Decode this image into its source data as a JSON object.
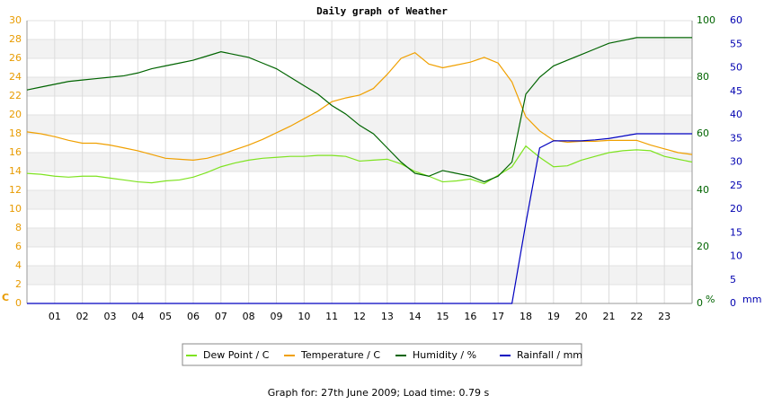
{
  "chart_data": {
    "type": "line",
    "title": "Daily graph of Weather",
    "x": [
      0,
      0.5,
      1,
      1.5,
      2,
      2.5,
      3,
      3.5,
      4,
      4.5,
      5,
      5.5,
      6,
      6.5,
      7,
      7.5,
      8,
      8.5,
      9,
      9.5,
      10,
      10.5,
      11,
      11.5,
      12,
      12.5,
      13,
      13.5,
      14,
      14.5,
      15,
      15.5,
      16,
      16.5,
      17,
      17.5,
      18,
      18.5,
      19,
      19.5,
      20,
      20.5,
      21,
      21.5,
      22,
      22.5,
      23,
      23.5,
      24
    ],
    "xlim": [
      0,
      24
    ],
    "xticks": [
      {
        "value": 1,
        "label": "01"
      },
      {
        "value": 2,
        "label": "02"
      },
      {
        "value": 3,
        "label": "03"
      },
      {
        "value": 4,
        "label": "04"
      },
      {
        "value": 5,
        "label": "05"
      },
      {
        "value": 6,
        "label": "06"
      },
      {
        "value": 7,
        "label": "07"
      },
      {
        "value": 8,
        "label": "08"
      },
      {
        "value": 9,
        "label": "09"
      },
      {
        "value": 10,
        "label": "10"
      },
      {
        "value": 11,
        "label": "11"
      },
      {
        "value": 12,
        "label": "12"
      },
      {
        "value": 13,
        "label": "13"
      },
      {
        "value": 14,
        "label": "14"
      },
      {
        "value": 15,
        "label": "15"
      },
      {
        "value": 16,
        "label": "16"
      },
      {
        "value": 17,
        "label": "17"
      },
      {
        "value": 18,
        "label": "18"
      },
      {
        "value": 19,
        "label": "19"
      },
      {
        "value": 20,
        "label": "20"
      },
      {
        "value": 21,
        "label": "21"
      },
      {
        "value": 22,
        "label": "22"
      },
      {
        "value": 23,
        "label": "23"
      }
    ],
    "ylabel": "C",
    "ylim": [
      0,
      30
    ],
    "yticks": [
      0,
      2,
      4,
      6,
      8,
      10,
      12,
      14,
      16,
      18,
      20,
      22,
      24,
      26,
      28,
      30
    ],
    "ycolor": "#e89b00",
    "y2label": "%",
    "y2lim": [
      0,
      100
    ],
    "y2ticks": [
      0,
      20,
      40,
      60,
      80,
      100
    ],
    "y2color": "#006400",
    "y3label": "mm",
    "y3lim": [
      0,
      60
    ],
    "y3ticks": [
      0,
      5,
      10,
      15,
      20,
      25,
      30,
      35,
      40,
      45,
      50,
      55,
      60
    ],
    "y3color": "#0000b0",
    "grid": true,
    "series": [
      {
        "name": "Dew Point / C",
        "color": "#7ee320",
        "axis": "y",
        "values": [
          13.8,
          13.7,
          13.5,
          13.4,
          13.5,
          13.5,
          13.3,
          13.1,
          12.9,
          12.8,
          13.0,
          13.1,
          13.4,
          13.9,
          14.5,
          14.9,
          15.2,
          15.4,
          15.5,
          15.6,
          15.6,
          15.7,
          15.7,
          15.6,
          15.1,
          15.2,
          15.3,
          14.8,
          14.0,
          13.5,
          12.9,
          13.0,
          13.2,
          12.7,
          13.6,
          14.5,
          16.7,
          15.5,
          14.5,
          14.6,
          15.2,
          15.6,
          16.0,
          16.2,
          16.3,
          16.2,
          15.6,
          15.3,
          15.0
        ]
      },
      {
        "name": "Temperature / C",
        "color": "#f0a000",
        "axis": "y",
        "values": [
          18.2,
          18.0,
          17.7,
          17.3,
          17.0,
          17.0,
          16.8,
          16.5,
          16.2,
          15.8,
          15.4,
          15.3,
          15.2,
          15.4,
          15.8,
          16.3,
          16.8,
          17.4,
          18.1,
          18.8,
          19.6,
          20.4,
          21.4,
          21.8,
          22.1,
          22.8,
          24.3,
          26.0,
          26.6,
          25.4,
          25.0,
          25.3,
          25.6,
          26.1,
          25.5,
          23.5,
          19.8,
          18.3,
          17.3,
          17.1,
          17.2,
          17.2,
          17.3,
          17.3,
          17.3,
          16.8,
          16.4,
          16.0,
          15.8
        ]
      },
      {
        "name": "Humidity / %",
        "color": "#006400",
        "axis": "y2",
        "values": [
          75.5,
          76.5,
          77.5,
          78.5,
          79,
          79.5,
          80,
          80.5,
          81.5,
          83,
          84,
          85,
          86,
          87.5,
          89,
          88,
          87,
          85,
          83,
          80,
          77,
          74,
          70,
          67,
          63,
          60,
          55,
          50,
          46,
          45,
          47,
          46,
          45,
          43,
          45,
          50,
          74,
          80,
          84,
          86,
          88,
          90,
          92,
          93,
          94,
          94,
          94,
          94,
          94
        ]
      },
      {
        "name": "Rainfall / mm",
        "color": "#0000c0",
        "axis": "y3",
        "values": [
          0,
          0,
          0,
          0,
          0,
          0,
          0,
          0,
          0,
          0,
          0,
          0,
          0,
          0,
          0,
          0,
          0,
          0,
          0,
          0,
          0,
          0,
          0,
          0,
          0,
          0,
          0,
          0,
          0,
          0,
          0,
          0,
          0,
          0,
          0,
          0,
          17,
          33,
          34.5,
          34.5,
          34.5,
          34.7,
          35,
          35.5,
          36,
          36,
          36,
          36,
          36
        ]
      }
    ]
  },
  "footer": "Graph for: 27th June 2009; Load time: 0.79 s"
}
